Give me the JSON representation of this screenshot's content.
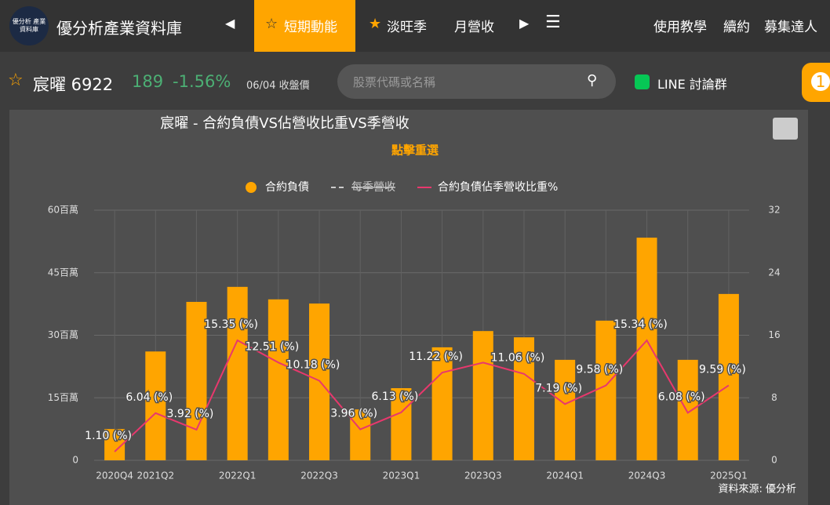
{
  "nav": {
    "brand": "優分析產業資料庫",
    "logo": "優分析 產業資料庫",
    "tabs": [
      "短期動能",
      "淡旺季",
      "月營收"
    ],
    "links": [
      "使用教學",
      "續約",
      "募集達人"
    ]
  },
  "stock": {
    "name": "宸曜 6922",
    "price": "189",
    "change": "-1.56%",
    "date": "06/04 收盤價"
  },
  "search": {
    "placeholder": "股票代碼或名稱"
  },
  "line_group": "LINE 討論群",
  "badge": "1",
  "chart_data": {
    "type": "bar",
    "title": "宸曜 - 合約負債VS佔營收比重VS季營收",
    "subtitle": "點擊重選",
    "categories": [
      "2020Q4",
      "2021Q2",
      null,
      "2022Q1",
      null,
      "2022Q3",
      null,
      "2023Q1",
      null,
      "2023Q3",
      null,
      "2024Q1",
      null,
      "2024Q3",
      null,
      "2025Q1"
    ],
    "series": [
      {
        "name": "合約負債",
        "color": "#ffa500",
        "type": "bar",
        "values": [
          7.5,
          26.1,
          38.0,
          41.6,
          38.6,
          37.6,
          12.2,
          17.3,
          27.1,
          31.0,
          29.5,
          24.1,
          33.5,
          53.4,
          24.1,
          39.9
        ]
      },
      {
        "name": "每季營收",
        "color": "#cccccc",
        "type": "line",
        "hidden": true
      },
      {
        "name": "合約負債佔季營收比重%",
        "color": "#e8386d",
        "type": "line",
        "axis": "y2",
        "values": [
          1.1,
          6.04,
          3.92,
          15.35,
          12.51,
          10.18,
          3.96,
          6.13,
          11.22,
          12.5,
          11.06,
          7.19,
          9.58,
          15.34,
          6.08,
          9.59
        ],
        "value_labels": [
          "1.10 (%)",
          "6.04 (%)",
          "3.92 (%)",
          "15.35 (%)",
          "12.51 (%)",
          "10.18 (%)",
          "3.96 (%)",
          "6.13 (%)",
          "11.22 (%)",
          null,
          "11.06 (%)",
          "7.19 (%)",
          "9.58 (%)",
          "15.34 (%)",
          "6.08 (%)",
          "9.59 (%)"
        ]
      }
    ],
    "ylim": [
      0,
      60
    ],
    "yticks": [
      0,
      {
        "value": 15,
        "label": "15百萬"
      },
      {
        "value": 30,
        "label": "30百萬"
      },
      {
        "value": 45,
        "label": "45百萬"
      },
      {
        "value": 60,
        "label": "60百萬"
      }
    ],
    "y2lim": [
      0,
      32
    ],
    "y2ticks": [
      0,
      8,
      16,
      24,
      32
    ],
    "grid": true,
    "legend": "top",
    "source": "資料來源: 優分析"
  }
}
